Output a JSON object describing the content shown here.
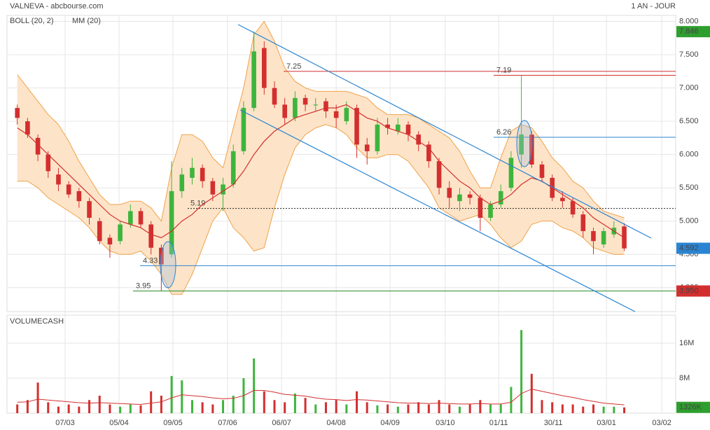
{
  "header": {
    "title": "VALNEVA - abcbourse.com",
    "period": "1 AN - JOUR"
  },
  "chart_data": {
    "type": "candlestick",
    "xlim": [
      -1,
      64
    ],
    "xticks": [
      {
        "value": 4.65,
        "label": "07/03"
      },
      {
        "value": 9.89,
        "label": "05/04"
      },
      {
        "value": 15.13,
        "label": "09/05"
      },
      {
        "value": 20.44,
        "label": "07/06"
      },
      {
        "value": 25.69,
        "label": "06/07"
      },
      {
        "value": 31.0,
        "label": "04/08"
      },
      {
        "value": 36.24,
        "label": "04/09"
      },
      {
        "value": 41.6,
        "label": "03/10"
      },
      {
        "value": 46.79,
        "label": "01/11"
      },
      {
        "value": 52.1,
        "label": "30/11"
      },
      {
        "value": 57.27,
        "label": "03/01"
      },
      {
        "value": 62.65,
        "label": "03/02"
      }
    ],
    "ylim": [
      3.64,
      8.09
    ],
    "yticks": [
      {
        "value": 4,
        "label": "4.000"
      },
      {
        "value": 4.5,
        "label": "4.500"
      },
      {
        "value": 5,
        "label": "5.000"
      },
      {
        "value": 5.5,
        "label": "5.500"
      },
      {
        "value": 6,
        "label": "6.000"
      },
      {
        "value": 6.5,
        "label": "6.500"
      },
      {
        "value": 7,
        "label": "7.000"
      },
      {
        "value": 7.5,
        "label": "7.500"
      },
      {
        "value": 8,
        "label": "8.000"
      }
    ],
    "grid": true,
    "up_color": "#3db53d",
    "down_color": "#d32f2f",
    "open": [
      6.7,
      6.5,
      6.25,
      6.0,
      5.7,
      5.55,
      5.45,
      5.3,
      5.0,
      4.75,
      4.7,
      4.95,
      5.15,
      4.95,
      4.6,
      4.5,
      5.45,
      5.65,
      5.8,
      5.6,
      5.4,
      5.55,
      6.05,
      6.7,
      7.6,
      7.0,
      6.75,
      6.55,
      6.85,
      6.75,
      6.8,
      6.65,
      6.5,
      6.7,
      6.15,
      6.05,
      6.45,
      6.35,
      6.45,
      6.3,
      6.15,
      5.9,
      5.5,
      5.3,
      5.4,
      5.35,
      5.05,
      5.25,
      5.5,
      6.0,
      6.3,
      5.85,
      5.65,
      5.35,
      5.3,
      5.1,
      4.85,
      4.65,
      4.8,
      4.92
    ],
    "high": [
      6.75,
      6.55,
      6.3,
      6.05,
      5.8,
      5.6,
      5.5,
      5.35,
      5.05,
      4.8,
      5.0,
      5.25,
      5.2,
      5.0,
      4.65,
      5.9,
      5.8,
      5.95,
      5.85,
      5.65,
      5.65,
      6.15,
      6.8,
      7.85,
      7.7,
      7.1,
      6.85,
      6.95,
      6.9,
      6.85,
      6.85,
      6.75,
      6.8,
      6.75,
      6.25,
      6.55,
      6.55,
      6.55,
      6.5,
      6.35,
      6.2,
      5.95,
      5.6,
      5.5,
      5.45,
      5.4,
      5.3,
      5.55,
      6.05,
      7.19,
      6.35,
      5.9,
      5.7,
      5.45,
      5.35,
      5.15,
      4.9,
      4.9,
      5.0,
      4.97
    ],
    "low": [
      6.45,
      6.25,
      5.9,
      5.65,
      5.45,
      5.35,
      5.2,
      4.95,
      4.65,
      4.45,
      4.65,
      4.9,
      4.9,
      4.5,
      3.95,
      4.45,
      5.35,
      5.55,
      5.5,
      5.3,
      5.15,
      5.5,
      6.0,
      6.65,
      6.9,
      6.7,
      6.45,
      6.5,
      6.65,
      6.65,
      6.55,
      6.4,
      6.45,
      5.95,
      5.85,
      6.0,
      6.3,
      6.3,
      6.2,
      6.05,
      5.8,
      5.4,
      5.2,
      5.15,
      5.25,
      4.85,
      5.0,
      5.2,
      5.45,
      5.8,
      5.8,
      5.6,
      5.3,
      5.2,
      5.05,
      4.75,
      4.5,
      4.6,
      4.75,
      4.55
    ],
    "close": [
      6.55,
      6.3,
      6.0,
      5.75,
      5.55,
      5.4,
      5.3,
      5.05,
      4.7,
      4.65,
      4.95,
      5.15,
      4.95,
      4.6,
      4.35,
      5.45,
      5.7,
      5.8,
      5.6,
      5.4,
      5.55,
      6.05,
      6.7,
      7.55,
      7.0,
      6.75,
      6.55,
      6.85,
      6.75,
      6.75,
      6.65,
      6.55,
      6.7,
      6.15,
      6.05,
      6.45,
      6.4,
      6.45,
      6.3,
      6.15,
      5.9,
      5.5,
      5.35,
      5.4,
      5.35,
      5.05,
      5.25,
      5.45,
      5.95,
      6.3,
      5.85,
      5.65,
      5.35,
      5.3,
      5.1,
      4.85,
      4.7,
      4.85,
      4.9,
      4.59
    ],
    "bollinger": {
      "name": "BOLL (20, 2)",
      "color": "#f0a24a",
      "fill": "#fde4c8",
      "upper": [
        7.2,
        7.0,
        6.8,
        6.6,
        6.45,
        6.2,
        5.9,
        5.65,
        5.4,
        5.25,
        5.25,
        5.3,
        5.3,
        5.2,
        5.0,
        5.8,
        6.3,
        6.3,
        6.2,
        5.95,
        5.8,
        6.4,
        7.0,
        7.8,
        8.0,
        7.7,
        7.3,
        7.1,
        7.0,
        6.95,
        6.95,
        6.95,
        6.95,
        6.9,
        6.85,
        6.7,
        6.6,
        6.6,
        6.6,
        6.55,
        6.45,
        6.35,
        6.25,
        6.05,
        5.75,
        5.5,
        5.5,
        5.95,
        6.35,
        6.45,
        6.4,
        6.2,
        5.95,
        5.8,
        5.6,
        5.5,
        5.3,
        5.15,
        5.1,
        5.05
      ],
      "lower": [
        5.6,
        5.6,
        5.5,
        5.35,
        5.25,
        5.15,
        5.05,
        4.9,
        4.7,
        4.55,
        4.5,
        4.5,
        4.55,
        4.4,
        4.2,
        3.9,
        3.9,
        4.2,
        4.6,
        5.0,
        5.2,
        4.9,
        4.75,
        4.55,
        4.6,
        5.2,
        5.7,
        6.1,
        6.3,
        6.4,
        6.45,
        6.4,
        6.3,
        6.1,
        5.95,
        5.95,
        6.0,
        6.0,
        5.9,
        5.7,
        5.5,
        5.2,
        5.1,
        5.0,
        5.05,
        5.1,
        4.95,
        4.75,
        4.6,
        4.7,
        4.95,
        5.0,
        5.0,
        4.9,
        4.85,
        4.75,
        4.6,
        4.55,
        4.5,
        4.5
      ]
    },
    "ma": {
      "name": "MM (20)",
      "color": "#d32f2f",
      "values": [
        6.4,
        6.3,
        6.15,
        6.0,
        5.85,
        5.7,
        5.55,
        5.4,
        5.25,
        5.1,
        5.0,
        4.95,
        4.9,
        4.8,
        4.75,
        4.85,
        5.0,
        5.1,
        5.25,
        5.35,
        5.45,
        5.55,
        5.75,
        6.0,
        6.2,
        6.35,
        6.45,
        6.55,
        6.6,
        6.65,
        6.7,
        6.7,
        6.75,
        6.65,
        6.55,
        6.5,
        6.4,
        6.35,
        6.3,
        6.2,
        6.1,
        5.9,
        5.75,
        5.6,
        5.5,
        5.35,
        5.25,
        5.3,
        5.4,
        5.55,
        5.65,
        5.6,
        5.5,
        5.4,
        5.3,
        5.2,
        5.05,
        4.95,
        4.85,
        4.75
      ]
    },
    "levels": [
      {
        "value": 7.25,
        "color": "#d32f2f",
        "label_color": "#d32f2f"
      },
      {
        "value": 7.19,
        "color": "#d32f2f",
        "label_color": "#d32f2f"
      },
      {
        "value": 6.26,
        "color": "#2a84d2",
        "label_color": "#2a84d2"
      },
      {
        "value": 5.19,
        "color": "#222222",
        "label_color": "#222222",
        "dashed": true
      },
      {
        "value": 4.33,
        "color": "#2a84d2",
        "label_color": "#2a84d2"
      },
      {
        "value": 3.95,
        "color": "#2e8b2e",
        "label_color": "#2e8b2e"
      }
    ],
    "price_labels": [
      {
        "value": 7.846,
        "color": "#2e9e2e"
      },
      {
        "value": 4.592,
        "color": "#2a84d2"
      },
      {
        "value": 3.95,
        "label": "3.950",
        "color": "#d32f2f"
      }
    ],
    "volume": {
      "title": "VOLUMECASH",
      "title_color": "#2e9e2e",
      "values": [
        2,
        3,
        7,
        2.5,
        1.5,
        2,
        1.5,
        3,
        4,
        2,
        1.5,
        2,
        1.8,
        5,
        4,
        8.5,
        7.5,
        3,
        2.5,
        2,
        3,
        4,
        8,
        12.5,
        5,
        3,
        2.5,
        4.5,
        3.5,
        2,
        2.5,
        3,
        2,
        5,
        2.5,
        1.8,
        2,
        1.5,
        2,
        2.5,
        2,
        3,
        2,
        1.5,
        2,
        3,
        2,
        2,
        6,
        19,
        9,
        3,
        2.5,
        2,
        2,
        1.5,
        2,
        1.5,
        1.5,
        1.326
      ],
      "ma": {
        "color": "#d32f2f",
        "values": [
          2.5,
          2.6,
          3.2,
          3,
          2.8,
          2.6,
          2.4,
          2.3,
          2.4,
          2.3,
          2.2,
          2.1,
          2,
          2.3,
          2.6,
          3.5,
          4.2,
          4,
          3.8,
          3.5,
          3.3,
          3.4,
          4,
          5.2,
          5.2,
          4.8,
          4.3,
          4.1,
          3.9,
          3.5,
          3.2,
          3.1,
          2.9,
          3.1,
          3,
          2.8,
          2.6,
          2.4,
          2.3,
          2.3,
          2.2,
          2.3,
          2.2,
          2.1,
          2.1,
          2.2,
          2.1,
          2.1,
          2.5,
          4.5,
          5.5,
          5,
          4.5,
          4,
          3.6,
          3.1,
          2.7,
          2.3,
          2.1,
          1.9
        ]
      },
      "last": {
        "value": 1.326,
        "label": "1326K",
        "color": "#2e9e2e"
      },
      "ylim": [
        0,
        22.4
      ],
      "yticks": [
        {
          "value": 8,
          "label": "8M"
        },
        {
          "value": 16,
          "label": "16M"
        }
      ]
    }
  }
}
